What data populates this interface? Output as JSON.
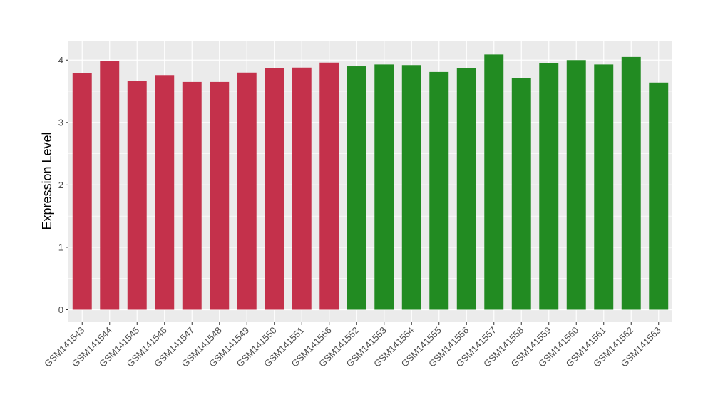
{
  "chart_data": {
    "type": "bar",
    "title": "",
    "xlabel": "",
    "ylabel": "Expression Level",
    "ylim": [
      -0.2,
      4.3
    ],
    "yticks": [
      0,
      1,
      2,
      3,
      4
    ],
    "grid": true,
    "legend": "none",
    "categories": [
      "GSM141543",
      "GSM141544",
      "GSM141545",
      "GSM141546",
      "GSM141547",
      "GSM141548",
      "GSM141549",
      "GSM141550",
      "GSM141551",
      "GSM141566",
      "GSM141552",
      "GSM141553",
      "GSM141554",
      "GSM141555",
      "GSM141556",
      "GSM141557",
      "GSM141558",
      "GSM141559",
      "GSM141560",
      "GSM141561",
      "GSM141562",
      "GSM141563"
    ],
    "values": [
      3.79,
      3.99,
      3.67,
      3.76,
      3.65,
      3.65,
      3.8,
      3.87,
      3.88,
      3.96,
      3.9,
      3.93,
      3.92,
      3.81,
      3.87,
      4.09,
      3.71,
      3.95,
      4.0,
      3.93,
      4.05,
      3.64
    ],
    "groups": [
      "a",
      "a",
      "a",
      "a",
      "a",
      "a",
      "a",
      "a",
      "a",
      "a",
      "b",
      "b",
      "b",
      "b",
      "b",
      "b",
      "b",
      "b",
      "b",
      "b",
      "b",
      "b"
    ],
    "colors": {
      "a": "#c4314b",
      "b": "#228b22"
    },
    "panel_background": "#ebebeb",
    "grid_color": "#ffffff"
  }
}
